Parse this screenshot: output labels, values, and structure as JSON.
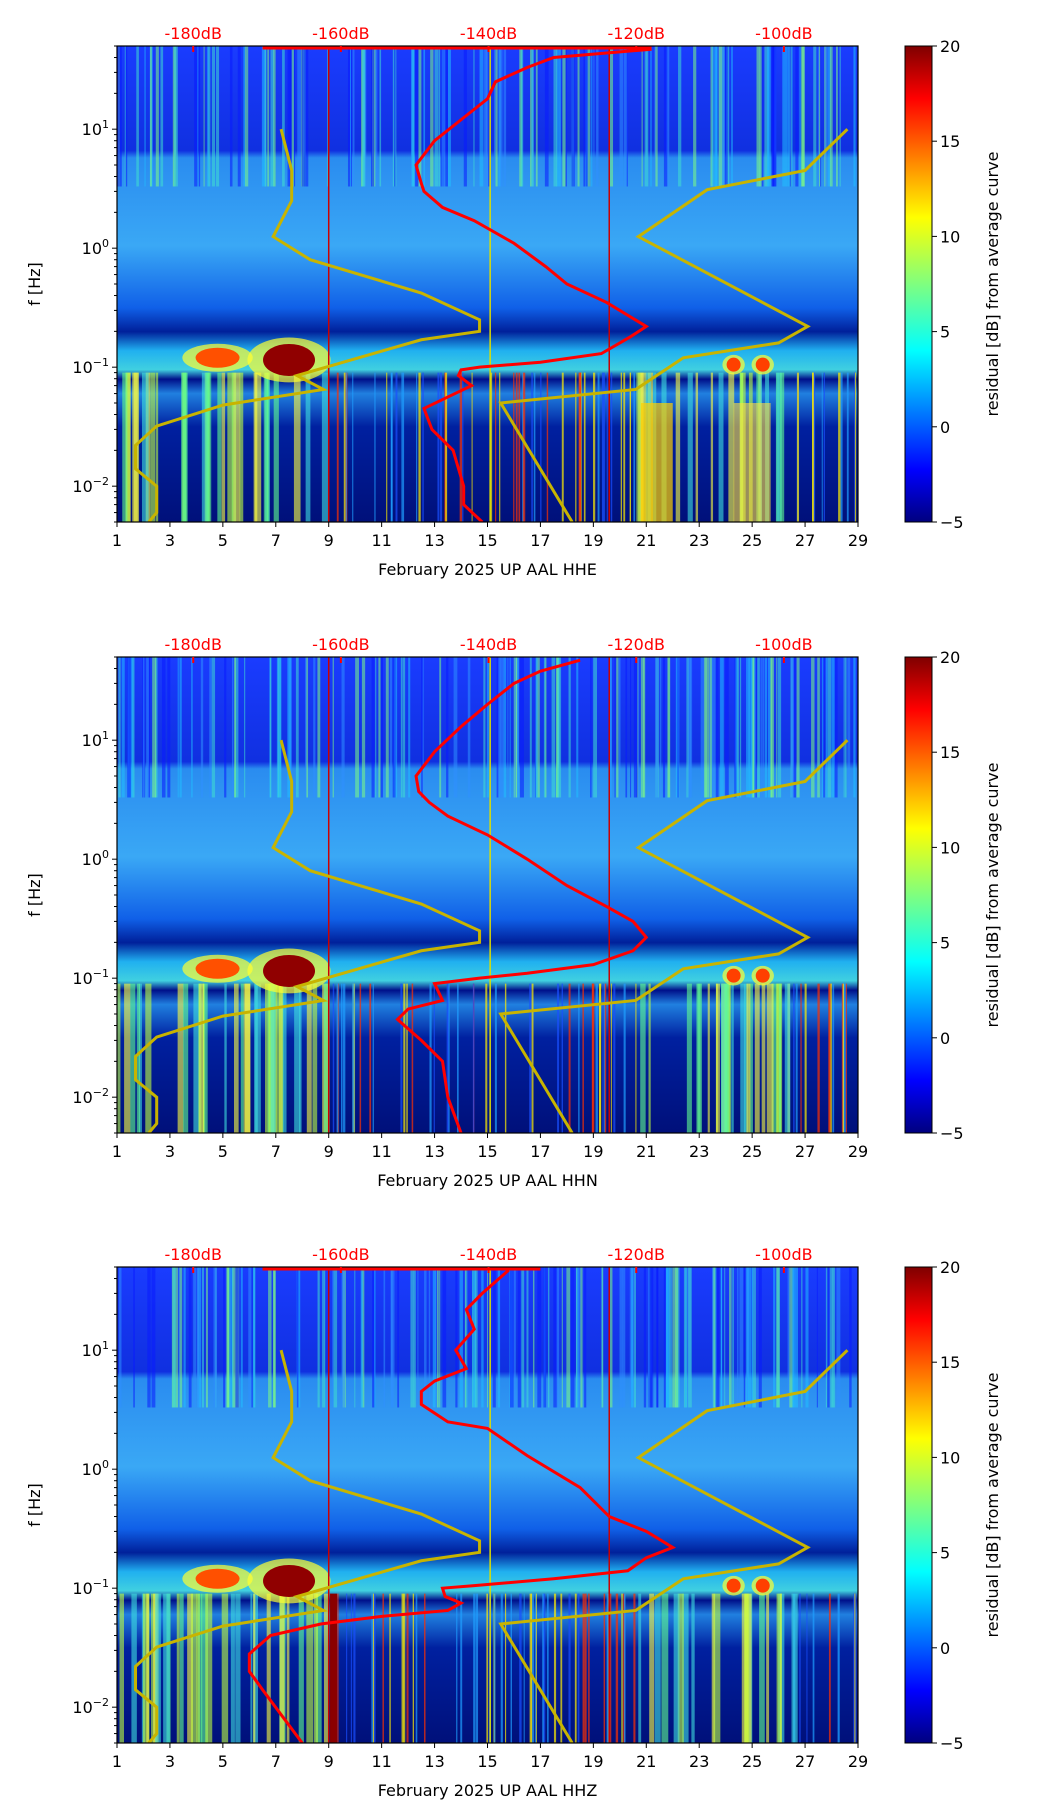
{
  "chart_data": {
    "type": "heatmap",
    "xlim": [
      1,
      29
    ],
    "ylim": [
      0.005,
      50
    ],
    "yscale": "log",
    "ylabel": "f [Hz]",
    "xticks": [
      "1",
      "3",
      "5",
      "7",
      "9",
      "11",
      "13",
      "15",
      "17",
      "19",
      "21",
      "23",
      "25",
      "27",
      "29"
    ],
    "yticks": [
      {
        "value": 0.01,
        "base": "10",
        "exp": "−2"
      },
      {
        "value": 0.1,
        "base": "10",
        "exp": "−1"
      },
      {
        "value": 1,
        "base": "10",
        "exp": "0"
      },
      {
        "value": 10,
        "base": "10",
        "exp": "1"
      }
    ],
    "top_axis": {
      "color": "#ff0000",
      "ticks": [
        {
          "label": "-180dB",
          "db": -180
        },
        {
          "label": "-160dB",
          "db": -160
        },
        {
          "label": "-140dB",
          "db": -140
        },
        {
          "label": "-120dB",
          "db": -120
        },
        {
          "label": "-100dB",
          "db": -100
        }
      ],
      "day_at_minus140": 15.04,
      "days_per_dB": 0.279
    },
    "colorbar": {
      "label": "residual [dB] from average curve",
      "range": [
        -5,
        20
      ],
      "ticks": [
        "20",
        "15",
        "10",
        "5",
        "0",
        "−5"
      ],
      "colormap": "jet"
    },
    "vertical_lines": [
      {
        "day": 9.0,
        "color": "#cc0000"
      },
      {
        "day": 19.6,
        "color": "#cc0000"
      },
      {
        "day": 15.1,
        "color": "#dddd00"
      }
    ],
    "yellow_curves": [
      [
        [
          7.2,
          10
        ],
        [
          7.6,
          4.5
        ],
        [
          7.6,
          2.5
        ],
        [
          6.9,
          1.25
        ],
        [
          8.3,
          0.8
        ],
        [
          12.5,
          0.42
        ],
        [
          14.7,
          0.25
        ],
        [
          14.7,
          0.2
        ],
        [
          12.5,
          0.17
        ],
        [
          7.8,
          0.085
        ],
        [
          8.8,
          0.065
        ],
        [
          5,
          0.048
        ],
        [
          2.5,
          0.032
        ],
        [
          1.7,
          0.022
        ],
        [
          1.7,
          0.014
        ],
        [
          2.5,
          0.01
        ],
        [
          2.5,
          0.006
        ],
        [
          2.2,
          0.005
        ]
      ],
      [
        [
          28.6,
          10
        ],
        [
          27,
          4.5
        ],
        [
          23.3,
          3.1
        ],
        [
          20.7,
          1.25
        ],
        [
          27.1,
          0.22
        ],
        [
          26,
          0.16
        ],
        [
          22.4,
          0.12
        ],
        [
          20.6,
          0.065
        ],
        [
          15.5,
          0.05
        ],
        [
          18.2,
          0.005
        ]
      ]
    ],
    "panels": [
      {
        "xlabel": "February 2025 UP AAL  HHE",
        "red_curve": [
          [
            21.2,
            47
          ],
          [
            17.5,
            40
          ],
          [
            16.5,
            33
          ],
          [
            15.3,
            25
          ],
          [
            15,
            18
          ],
          [
            14,
            12
          ],
          [
            13,
            8
          ],
          [
            12.3,
            5
          ],
          [
            12.5,
            3.5
          ],
          [
            12.6,
            3
          ],
          [
            13.3,
            2.2
          ],
          [
            14.5,
            1.7
          ],
          [
            16,
            1.1
          ],
          [
            17.2,
            0.7
          ],
          [
            18,
            0.5
          ],
          [
            19.5,
            0.35
          ],
          [
            21,
            0.22
          ],
          [
            20.4,
            0.18
          ],
          [
            19.3,
            0.13
          ],
          [
            17,
            0.11
          ],
          [
            14.7,
            0.1
          ],
          [
            14,
            0.095
          ],
          [
            13.9,
            0.085
          ],
          [
            14.4,
            0.07
          ],
          [
            12.6,
            0.045
          ],
          [
            12.9,
            0.03
          ],
          [
            13.7,
            0.02
          ],
          [
            14.1,
            0.01
          ],
          [
            14.1,
            0.007
          ],
          [
            14.8,
            0.005
          ]
        ],
        "top_line": [
          6.5,
          21.2
        ]
      },
      {
        "xlabel": "February 2025 UP AAL  HHN",
        "red_curve": [
          [
            18.5,
            47
          ],
          [
            17,
            38
          ],
          [
            16,
            30
          ],
          [
            15,
            20
          ],
          [
            14,
            13
          ],
          [
            13,
            8
          ],
          [
            12.3,
            5
          ],
          [
            12.4,
            3.7
          ],
          [
            12.8,
            3
          ],
          [
            13.5,
            2.3
          ],
          [
            15,
            1.6
          ],
          [
            16.5,
            1
          ],
          [
            18,
            0.6
          ],
          [
            19.5,
            0.4
          ],
          [
            20.5,
            0.3
          ],
          [
            21,
            0.22
          ],
          [
            20.5,
            0.17
          ],
          [
            19,
            0.13
          ],
          [
            16.5,
            0.11
          ],
          [
            14.7,
            0.1
          ],
          [
            13,
            0.09
          ],
          [
            13.3,
            0.065
          ],
          [
            12,
            0.055
          ],
          [
            11.6,
            0.045
          ],
          [
            12.5,
            0.03
          ],
          [
            13.3,
            0.02
          ],
          [
            13.5,
            0.01
          ],
          [
            14,
            0.005
          ]
        ],
        "top_line": null
      },
      {
        "xlabel": "February 2025 UP AAL  HHZ",
        "red_curve": [
          [
            15.8,
            47
          ],
          [
            14.8,
            30
          ],
          [
            14.2,
            22
          ],
          [
            14.5,
            15
          ],
          [
            13.8,
            10
          ],
          [
            14.2,
            7
          ],
          [
            13,
            5.5
          ],
          [
            12.5,
            4.5
          ],
          [
            12.5,
            3.5
          ],
          [
            13.5,
            2.5
          ],
          [
            15,
            2.2
          ],
          [
            16.5,
            1.3
          ],
          [
            18.5,
            0.7
          ],
          [
            19.6,
            0.4
          ],
          [
            21,
            0.3
          ],
          [
            22,
            0.22
          ],
          [
            21,
            0.18
          ],
          [
            20.3,
            0.14
          ],
          [
            17.5,
            0.12
          ],
          [
            14.5,
            0.105
          ],
          [
            13.3,
            0.1
          ],
          [
            13.4,
            0.085
          ],
          [
            14,
            0.075
          ],
          [
            13.5,
            0.065
          ],
          [
            11,
            0.058
          ],
          [
            8.7,
            0.05
          ],
          [
            6.8,
            0.04
          ],
          [
            6,
            0.028
          ],
          [
            6,
            0.02
          ],
          [
            6.5,
            0.014
          ],
          [
            8,
            0.005
          ]
        ],
        "top_line": [
          6.5,
          17
        ]
      }
    ]
  }
}
